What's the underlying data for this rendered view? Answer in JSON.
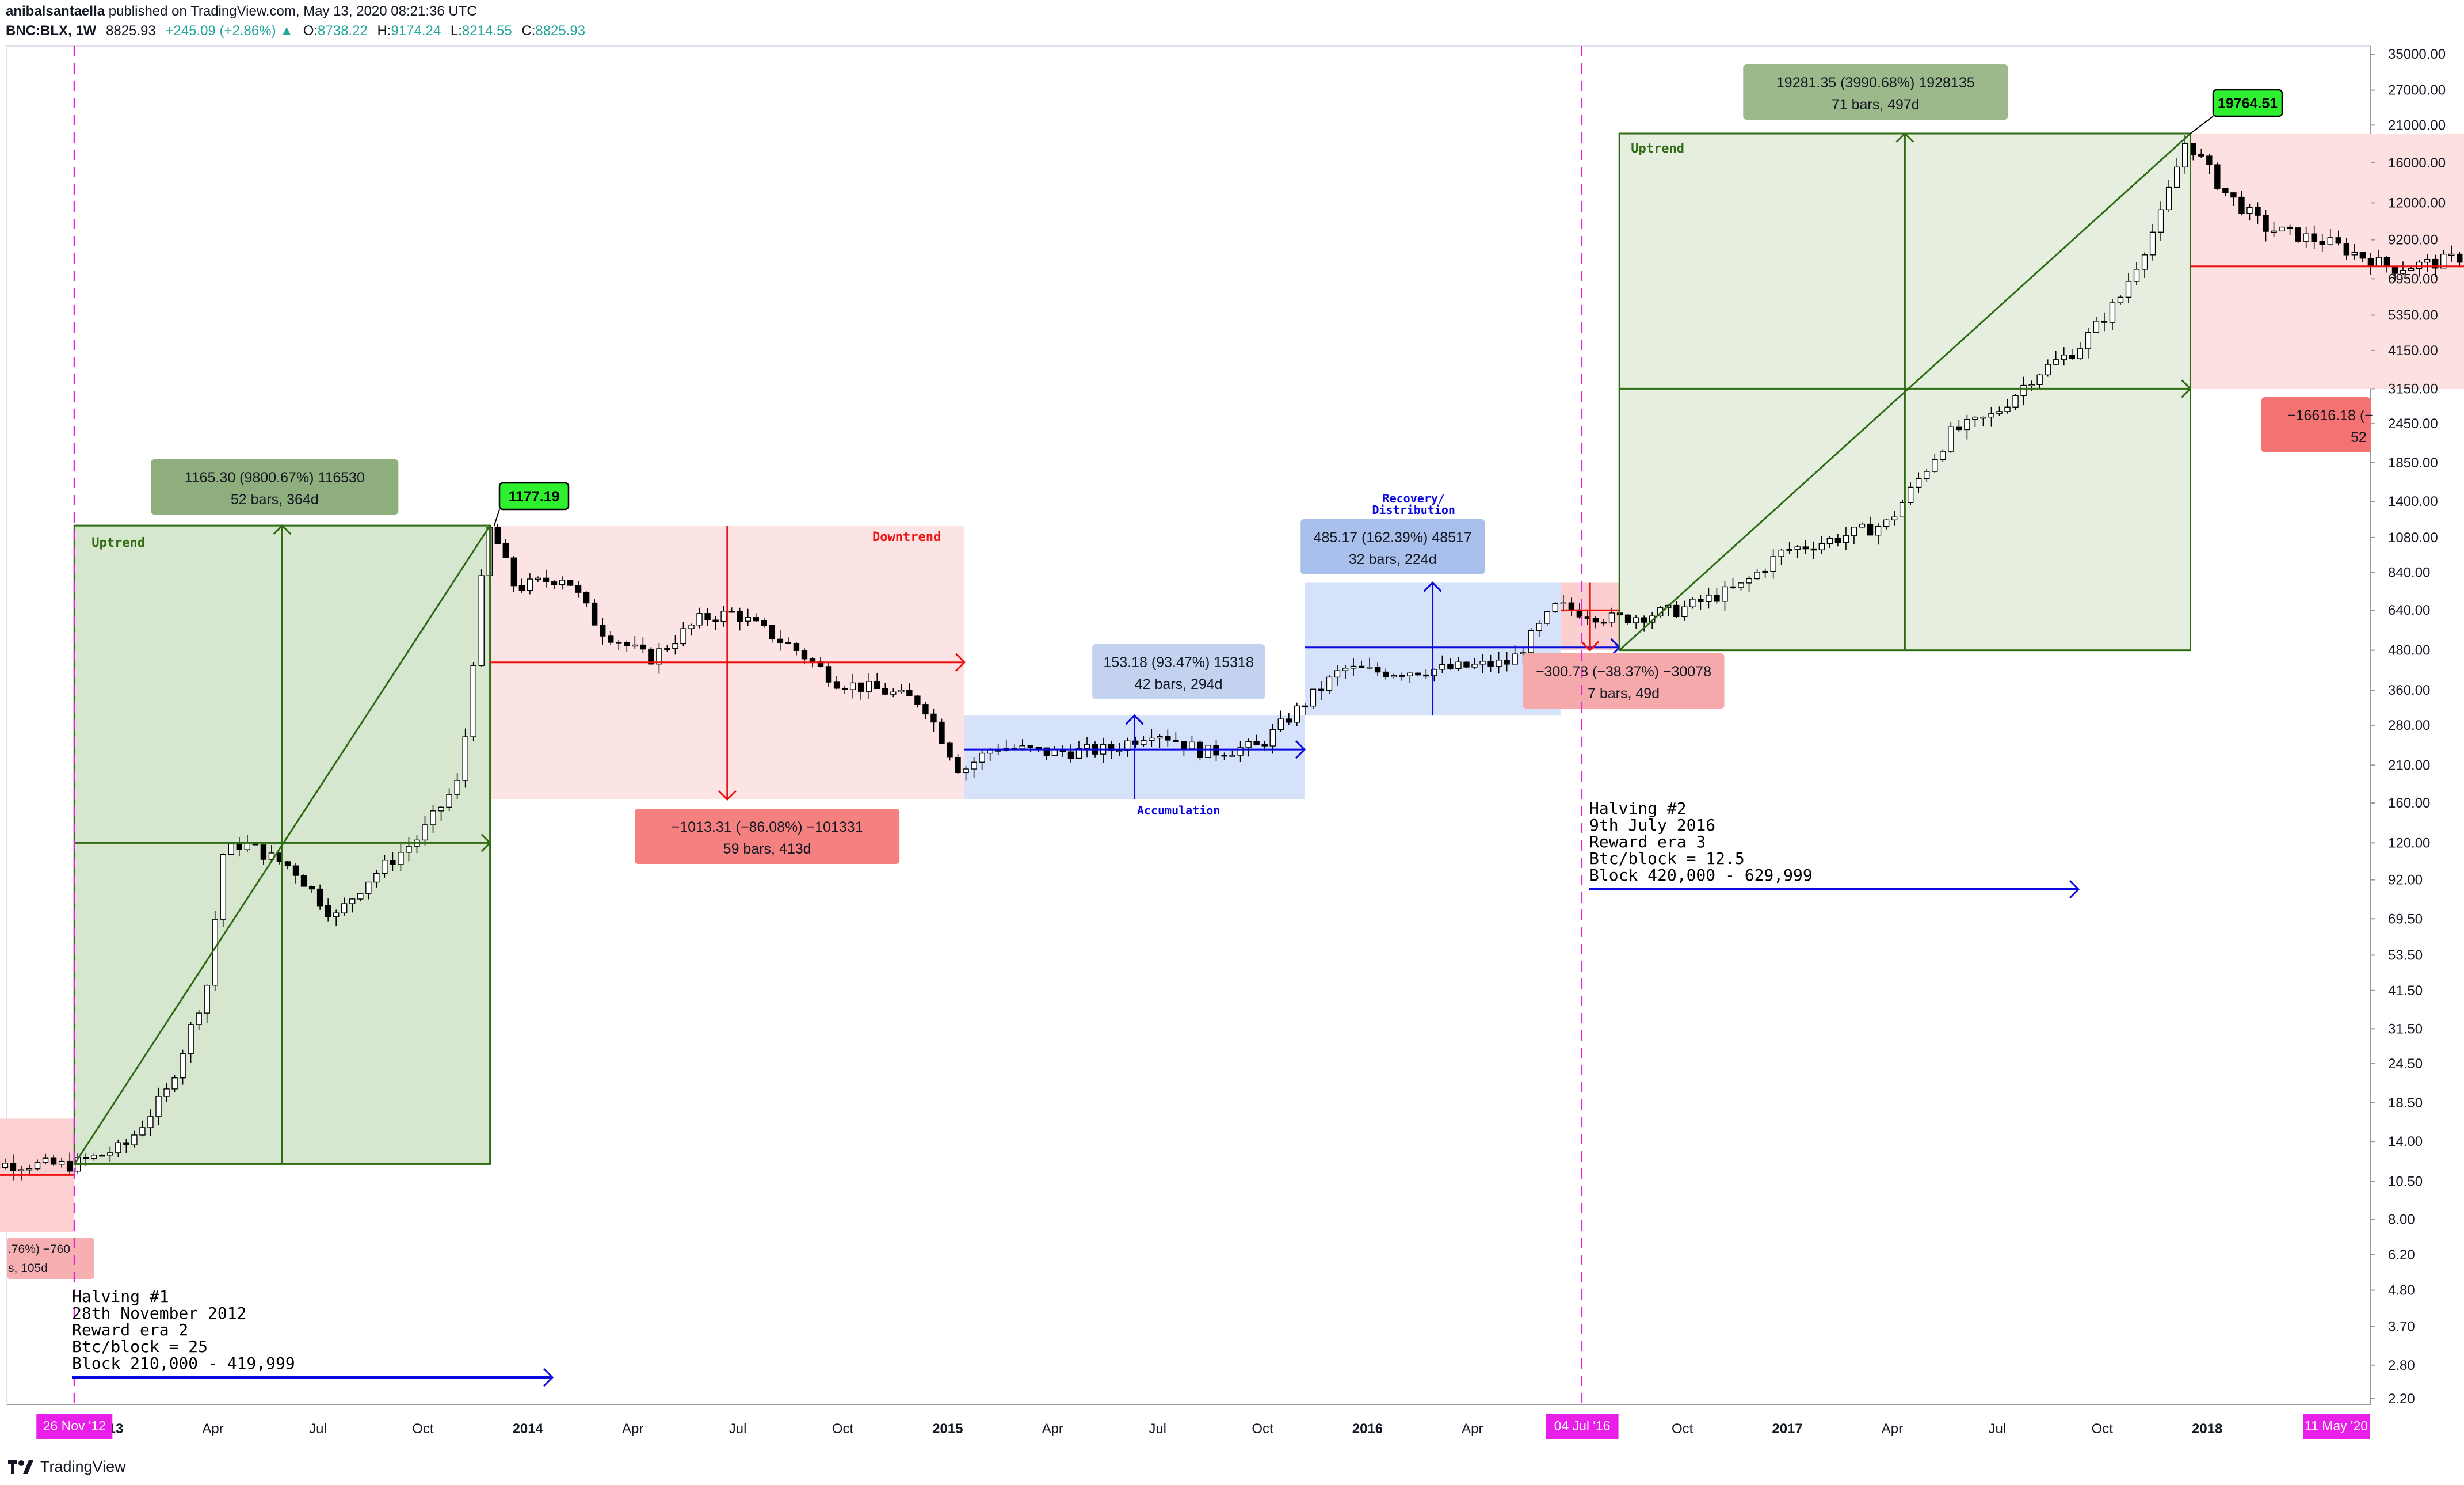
{
  "header": {
    "author": "anibalsantaella",
    "published": "published on TradingView.com, May 13, 2020 08:21:36 UTC",
    "symbol": "BNC:BLX, 1W",
    "last": "8825.93",
    "change": "+245.09 (+2.86%)",
    "o_label": "O:",
    "o": "8738.22",
    "h_label": "H:",
    "h": "9174.24",
    "l_label": "L:",
    "l": "8214.55",
    "c_label": "C:",
    "c": "8825.93"
  },
  "footer": {
    "brand": "TradingView",
    "logo_icon": "tradingview-logo-icon"
  },
  "colors": {
    "uptrend": "#2e6b12",
    "downtrend": "#ee1111",
    "accum": "#0a0ae0",
    "halving": "#e91ee9",
    "green_fill": "#d7e6cf",
    "red_fill": "#fde4e4",
    "blue_fill": "#d5e2fa"
  },
  "chart_data": {
    "type": "candlestick",
    "yscale": "log",
    "y_ticks": [
      "35000.00",
      "27000.00",
      "21000.00",
      "16000.00",
      "12000.00",
      "9200.00",
      "6950.00",
      "5350.00",
      "4150.00",
      "3150.00",
      "2450.00",
      "1850.00",
      "1400.00",
      "1080.00",
      "840.00",
      "640.00",
      "480.00",
      "360.00",
      "280.00",
      "210.00",
      "160.00",
      "120.00",
      "92.00",
      "69.50",
      "53.50",
      "41.50",
      "31.50",
      "24.50",
      "18.50",
      "14.00",
      "10.50",
      "8.00",
      "6.20",
      "4.80",
      "3.70",
      "2.80",
      "2.20"
    ],
    "x_ticks": [
      "2013",
      "Apr",
      "Jul",
      "Oct",
      "2014",
      "Apr",
      "Jul",
      "Oct",
      "2015",
      "Apr",
      "Jul",
      "Oct",
      "2016",
      "Apr",
      "Oct",
      "2017",
      "Apr",
      "Jul",
      "Oct",
      "2018"
    ],
    "x_bold": [
      "2013",
      "2014",
      "2015",
      "2016",
      "2017",
      "2018"
    ],
    "x_flags": [
      "26 Nov '12",
      "04 Jul '16",
      "11 May '20"
    ],
    "price_flags": [
      "1177.19",
      "19764.51"
    ],
    "halvings": [
      {
        "date": "26 Nov '12",
        "lines": [
          "Halving #1",
          "28th November 2012",
          "Reward era 2",
          "Btc/block = 25",
          "Block 210,000 - 419,999"
        ]
      },
      {
        "date": "04 Jul '16",
        "lines": [
          "Halving #2",
          "9th July 2016",
          "Reward era 3",
          "Btc/block = 12.5",
          "Block 420,000 - 629,999"
        ]
      }
    ],
    "regions": [
      {
        "kind": "uptrend",
        "label": "Uptrend",
        "stats": [
          "1165.30 (9800.67%) 116530",
          "52 bars, 364d"
        ]
      },
      {
        "kind": "downtrend",
        "label": "Downtrend",
        "stats": [
          "−1013.31 (−86.08%) −101331",
          "59 bars, 413d"
        ]
      },
      {
        "kind": "accumulation",
        "label": "Accumulation",
        "stats": [
          "153.18 (93.47%) 15318",
          "42 bars, 294d"
        ]
      },
      {
        "kind": "recovery",
        "label": "Recovery/ Distribution",
        "stats": [
          "485.17 (162.39%) 48517",
          "32 bars, 224d"
        ]
      },
      {
        "kind": "pullback",
        "label": "",
        "stats": [
          "−300.78 (−38.37%) −30078",
          "7 bars, 49d"
        ]
      },
      {
        "kind": "uptrend",
        "label": "Uptrend",
        "stats": [
          "19281.35 (3990.68%) 1928135",
          "71 bars, 497d"
        ]
      },
      {
        "kind": "correction",
        "label": "",
        "stats": [
          "−16616.18 (−",
          "52"
        ]
      },
      {
        "kind": "early",
        "label": "",
        "stats": [
          ".76%) −760",
          "s, 105d"
        ]
      }
    ]
  }
}
